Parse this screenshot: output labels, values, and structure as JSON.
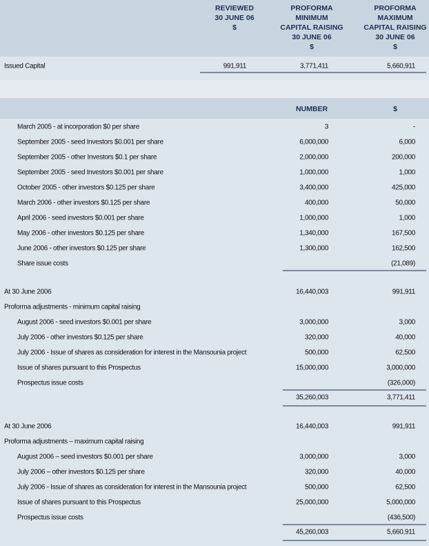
{
  "header": {
    "columns": [
      [
        "REVIEWED",
        "30 JUNE 06",
        "$"
      ],
      [
        "PROFORMA",
        "MINIMUM",
        "CAPITAL RAISING",
        "30 JUNE 06",
        "$"
      ],
      [
        "PROFORMA",
        "MAXIMUM",
        "CAPITAL RAISING",
        "30 JUNE 06",
        "$"
      ]
    ]
  },
  "issued_capital": {
    "label": "Issued Capital",
    "values": [
      "991,911",
      "3,771,411",
      "5,660,911"
    ]
  },
  "shares_table": {
    "columns": [
      "NUMBER",
      "$"
    ],
    "sections": [
      {
        "rows": [
          {
            "label": "March 2005 - at incorporation $0 per share",
            "number": "3",
            "amount": "-"
          },
          {
            "label": "September 2005 - seed Investors $0.001 per share",
            "number": "6,000,000",
            "amount": "6,000"
          },
          {
            "label": "September 2005 - other Investors $0.1 per share",
            "number": "2,000,000",
            "amount": "200,000"
          },
          {
            "label": "September 2005 - seed Investors $0.001 per share",
            "number": "1,000,000",
            "amount": "1,000"
          },
          {
            "label": "October 2005 - other investors $0.125 per share",
            "number": "3,400,000",
            "amount": "425,000"
          },
          {
            "label": "March 2006 - other investors $0.125 per share",
            "number": "400,000",
            "amount": "50,000"
          },
          {
            "label": "April 2006 - seed investors $0.001 per share",
            "number": "1,000,000",
            "amount": "1,000"
          },
          {
            "label": "May 2006 - other investors $0.125 per share",
            "number": "1,340,000",
            "amount": "167,500"
          },
          {
            "label": "June 2006 - other investors $0.125 per share",
            "number": "1,300,000",
            "amount": "162,500"
          },
          {
            "label": "Share issue costs",
            "amount": "(21,089)"
          }
        ]
      },
      {
        "title": "At 30 June 2006",
        "title_number": "16,440,003",
        "title_amount": "991,911",
        "subtitle": "Proforma adjustments - minimum capital raising",
        "rows": [
          {
            "label": "August 2006 - seed investors $0.001 per share",
            "number": "3,000,000",
            "amount": "3,000"
          },
          {
            "label": "July 2006 - other investors $0.125 per share",
            "number": "320,000",
            "amount": "40,000"
          },
          {
            "label": "July 2006 - Issue of shares as consideration for interest in the Mansounia project",
            "number": "500,000",
            "amount": "62,500"
          },
          {
            "label": "Issue of shares pursuant to this Prospectus",
            "number": "15,000,000",
            "amount": "3,000,000"
          },
          {
            "label": "Prospectus issue costs",
            "amount": "(326,000)"
          }
        ],
        "total_number": "35,260,003",
        "total_amount": "3,771,411"
      },
      {
        "title": "At 30 June 2006",
        "title_number": "16,440,003",
        "title_amount": "991,911",
        "subtitle": "Proforma adjustments – maximum capital raising",
        "rows": [
          {
            "label": "August 2006 – seed investors $0.001 per share",
            "number": "3,000,000",
            "amount": "3,000"
          },
          {
            "label": "July 2006 – other investors $0.125 per share",
            "number": "320,000",
            "amount": "40,000"
          },
          {
            "label": "July 2006 - Issue of shares as consideration for interest in the Mansounia project",
            "number": "500,000",
            "amount": "62,500"
          },
          {
            "label": "Issue of shares pursuant to this Prospectus",
            "number": "25,000,000",
            "amount": "5,000,000"
          },
          {
            "label": "Prospectus issue costs",
            "amount": "(436,500)"
          }
        ],
        "total_number": "45,260,003",
        "total_amount": "5,660,911"
      }
    ]
  }
}
